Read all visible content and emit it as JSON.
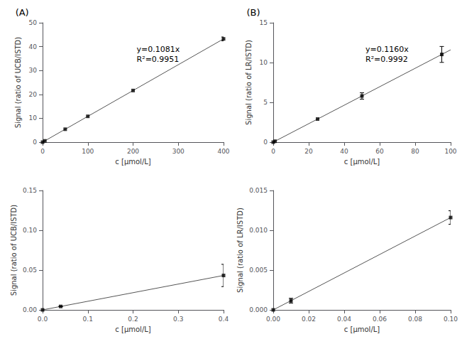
{
  "chart_data": [
    {
      "type": "scatter",
      "title": "(A)",
      "xlabel": "c [μmol/L]",
      "ylabel": "Signal (ratio of UCB/ISTD)",
      "annotations": [
        "y=0.1081x",
        "R²=0.9951"
      ],
      "xlim": [
        0,
        400
      ],
      "ylim": [
        0,
        50
      ],
      "xticks": [
        0,
        100,
        200,
        300,
        400
      ],
      "yticks": [
        0,
        10,
        20,
        30,
        40,
        50
      ],
      "grid": false,
      "series": [
        {
          "type": "line",
          "x": [
            0,
            400
          ],
          "values": [
            0,
            43.24
          ],
          "color": "#555555"
        },
        {
          "type": "scatter",
          "x": [
            0,
            5,
            50,
            100,
            200,
            400
          ],
          "values": [
            0.0,
            0.54,
            5.41,
            10.81,
            21.62,
            43.24
          ],
          "errors": [
            0,
            0,
            0,
            0,
            0,
            0.8
          ],
          "color": "#000000",
          "marker": "square"
        }
      ]
    },
    {
      "type": "scatter",
      "title": "(B)",
      "xlabel": "c [μmol/L]",
      "ylabel": "Signal (ratio of LR/ISTD)",
      "annotations": [
        "y=0.1160x",
        "R²=0.9992"
      ],
      "xlim": [
        0,
        100
      ],
      "ylim": [
        0,
        15
      ],
      "xticks": [
        0,
        20,
        40,
        60,
        80,
        100
      ],
      "yticks": [
        0,
        5,
        10,
        15
      ],
      "grid": false,
      "series": [
        {
          "type": "line",
          "x": [
            0,
            100
          ],
          "values": [
            0,
            11.6
          ],
          "color": "#555555"
        },
        {
          "type": "scatter",
          "x": [
            0,
            1,
            25,
            50,
            95
          ],
          "values": [
            0.0,
            0.116,
            2.9,
            5.8,
            11.02
          ],
          "errors": [
            0,
            0,
            0,
            0.4,
            1.0
          ],
          "color": "#000000",
          "marker": "square"
        }
      ]
    },
    {
      "type": "scatter",
      "xlabel": "c [μmol/L]",
      "ylabel": "Signal (ratio of UCB/ISTD)",
      "xlim": [
        0,
        0.4
      ],
      "ylim": [
        0,
        0.15
      ],
      "xticks": [
        {
          "value": 0.0,
          "label": "0.0"
        },
        0.1,
        0.2,
        0.3,
        0.4
      ],
      "yticks": [
        {
          "value": 0.0,
          "label": "0.00"
        },
        0.05,
        {
          "value": 0.1,
          "label": "0.10"
        },
        {
          "value": 0.15,
          "label": "0.15"
        }
      ],
      "grid": false,
      "series": [
        {
          "type": "line",
          "x": [
            0,
            0.4
          ],
          "values": [
            0,
            0.04324
          ],
          "color": "#555555"
        },
        {
          "type": "scatter",
          "x": [
            0,
            0.04,
            0.4
          ],
          "values": [
            0,
            0.00432,
            0.04324
          ],
          "errors": [
            0,
            0.0003,
            0.014
          ],
          "color": "#000000",
          "marker": "square"
        }
      ]
    },
    {
      "type": "scatter",
      "xlabel": "c [μmol/L]",
      "ylabel": "Signal (ratio of LR/ISTD)",
      "xlim": [
        0,
        0.1
      ],
      "ylim": [
        0,
        0.015
      ],
      "xticks": [
        {
          "value": 0.0,
          "label": "0.00"
        },
        0.02,
        0.04,
        0.06,
        0.08,
        {
          "value": 0.1,
          "label": "0.10"
        }
      ],
      "yticks": [
        {
          "value": 0.0,
          "label": "0.000"
        },
        0.005,
        {
          "value": 0.01,
          "label": "0.010"
        },
        0.015
      ],
      "grid": false,
      "series": [
        {
          "type": "line",
          "x": [
            0,
            0.1
          ],
          "values": [
            0,
            0.0116
          ],
          "color": "#555555"
        },
        {
          "type": "scatter",
          "x": [
            0,
            0.01,
            0.1
          ],
          "values": [
            0,
            0.00116,
            0.0116
          ],
          "errors": [
            0,
            0.0003,
            0.00085
          ],
          "color": "#000000",
          "marker": "square"
        }
      ]
    }
  ]
}
